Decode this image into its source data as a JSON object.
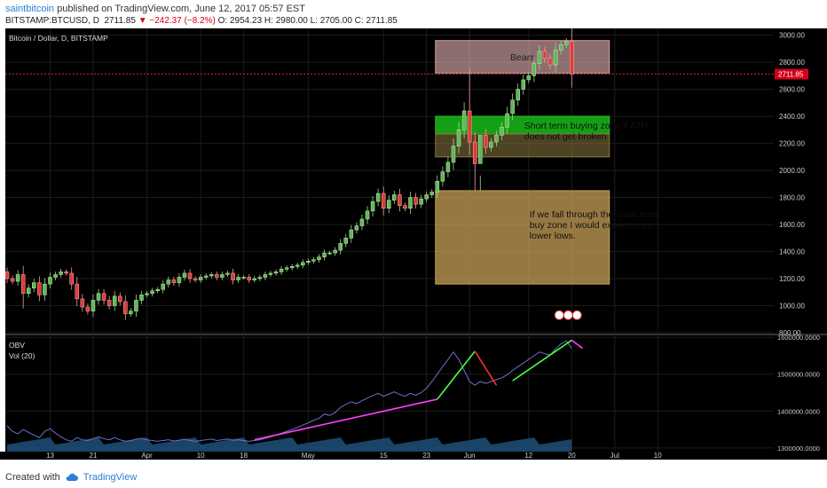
{
  "header": {
    "author": "saintbitcoin",
    "published_text": " published on TradingView.com, June 12, 2017 05:57 EST",
    "symbol": "BITSTAMP:BTCUSD, D",
    "last": "2711.85",
    "change": "▼ −242.37 (−8.2%)",
    "ohlc": "O: 2954.23  H: 2980.00  L: 2705.00  C: 2711.85"
  },
  "footer": {
    "created_with": "Created with",
    "brand": "TradingView"
  },
  "colors": {
    "up": "#26a69a",
    "upbody": "#5fb85a",
    "down": "#e03a3a",
    "obv": "#6a72c8",
    "green_line": "#4cff40",
    "magenta_line": "#ff40ff",
    "red_line": "#ff3030"
  },
  "chart_data": [
    {
      "type": "candlestick",
      "title": "Bitcoin / Dollar, D, BITSTAMP",
      "ylim": [
        800,
        3050
      ],
      "yticks": [
        "3000.00",
        "2800.00",
        "2600.00",
        "2400.00",
        "2200.00",
        "2000.00",
        "1800.00",
        "1600.00",
        "1400.00",
        "1200.00",
        "1000.00",
        "800.00"
      ],
      "xticks": [
        "13",
        "21",
        "Apr",
        "10",
        "18",
        "May",
        "15",
        "23",
        "Jun",
        "12",
        "20",
        "Jul",
        "10"
      ],
      "last_price_label": "2711.85",
      "closes": [
        1200,
        1180,
        1230,
        1090,
        1130,
        1170,
        1080,
        1160,
        1210,
        1230,
        1250,
        1240,
        1160,
        1050,
        990,
        960,
        1040,
        1090,
        1040,
        1000,
        1070,
        1030,
        940,
        960,
        1040,
        1080,
        1090,
        1110,
        1120,
        1160,
        1190,
        1170,
        1210,
        1240,
        1200,
        1190,
        1210,
        1220,
        1230,
        1210,
        1230,
        1240,
        1190,
        1210,
        1210,
        1190,
        1200,
        1210,
        1230,
        1240,
        1250,
        1270,
        1280,
        1290,
        1300,
        1320,
        1330,
        1340,
        1360,
        1390,
        1390,
        1410,
        1460,
        1500,
        1560,
        1590,
        1640,
        1700,
        1770,
        1830,
        1720,
        1780,
        1820,
        1740,
        1720,
        1800,
        1750,
        1790,
        1820,
        1840,
        1920,
        1990,
        2060,
        2180,
        2300,
        2440,
        2210,
        2050,
        2260,
        2170,
        2210,
        2260,
        2320,
        2420,
        2520,
        2600,
        2670,
        2700,
        2790,
        2880,
        2830,
        2780,
        2890,
        2930,
        2954,
        2712
      ],
      "zones": [
        {
          "label": "Bears",
          "from": 2720,
          "to": 2960
        },
        {
          "label": "Short term buying zone if ATH does not get broken",
          "from": 2100,
          "to": 2400
        },
        {
          "label": "If we fall through the short term buy zone I would expect even lower lows.",
          "from": 1160,
          "to": 1850
        }
      ]
    },
    {
      "type": "line",
      "series_labels": [
        "OBV",
        "Vol (20)"
      ],
      "ylim": [
        1290000,
        1605000
      ],
      "yticks": [
        "1600000.0000",
        "1500000.0000",
        "1400000.0000",
        "1300000.0000"
      ],
      "obv": [
        1360000,
        1345000,
        1338000,
        1350000,
        1342000,
        1335000,
        1328000,
        1345000,
        1352000,
        1340000,
        1330000,
        1322000,
        1318000,
        1328000,
        1322000,
        1320000,
        1325000,
        1330000,
        1325000,
        1322000,
        1328000,
        1322000,
        1318000,
        1320000,
        1324000,
        1326000,
        1322000,
        1320000,
        1318000,
        1320000,
        1322000,
        1319000,
        1321000,
        1324000,
        1320000,
        1318000,
        1320000,
        1322000,
        1324000,
        1320000,
        1322000,
        1324000,
        1321000,
        1322000,
        1320000,
        1318000,
        1320000,
        1322000,
        1326000,
        1330000,
        1335000,
        1340000,
        1345000,
        1350000,
        1356000,
        1362000,
        1368000,
        1375000,
        1380000,
        1392000,
        1388000,
        1396000,
        1410000,
        1418000,
        1425000,
        1420000,
        1428000,
        1435000,
        1442000,
        1448000,
        1440000,
        1446000,
        1452000,
        1445000,
        1440000,
        1448000,
        1443000,
        1450000,
        1462000,
        1480000,
        1500000,
        1520000,
        1540000,
        1560000,
        1540000,
        1510000,
        1480000,
        1470000,
        1480000,
        1475000,
        1480000,
        1485000,
        1490000,
        1498000,
        1510000,
        1520000,
        1530000,
        1540000,
        1550000,
        1560000,
        1555000,
        1552000,
        1568000,
        1582000,
        1590000,
        1570000
      ],
      "trendlines": [
        {
          "color": "magenta",
          "from": [
            46,
            1322000
          ],
          "to": [
            80,
            1432000
          ]
        },
        {
          "color": "green",
          "from": [
            80,
            1432000
          ],
          "to": [
            87,
            1562000
          ]
        },
        {
          "color": "red",
          "from": [
            87,
            1562000
          ],
          "to": [
            91,
            1470000
          ]
        },
        {
          "color": "green",
          "from": [
            94,
            1482000
          ],
          "to": [
            105,
            1592000
          ]
        },
        {
          "color": "magenta",
          "from": [
            105,
            1592000
          ],
          "to": [
            107,
            1570000
          ]
        }
      ]
    }
  ]
}
